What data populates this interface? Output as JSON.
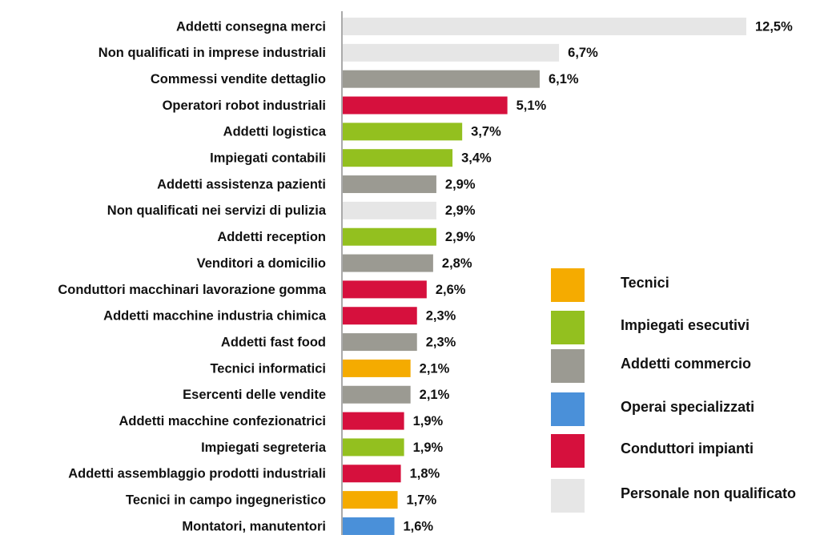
{
  "chart_data": {
    "type": "bar",
    "orientation": "horizontal",
    "categories": [
      "Addetti consegna merci",
      "Non qualificati in imprese industriali",
      "Commessi vendite dettaglio",
      "Operatori robot industriali",
      "Addetti logistica",
      "Impiegati contabili",
      "Addetti assistenza pazienti",
      "Non qualificati nei servizi di pulizia",
      "Addetti reception",
      "Venditori a domicilio",
      "Conduttori macchinari lavorazione gomma",
      "Addetti macchine industria chimica",
      "Addetti fast food",
      "Tecnici informatici",
      "Esercenti delle vendite",
      "Addetti macchine confezionatrici",
      "Impiegati segreteria",
      "Addetti assemblaggio prodotti industriali",
      "Tecnici in campo ingegneristico",
      "Montatori, manutentori"
    ],
    "values": [
      12.5,
      6.7,
      6.1,
      5.1,
      3.7,
      3.4,
      2.9,
      2.9,
      2.9,
      2.8,
      2.6,
      2.3,
      2.3,
      2.1,
      2.1,
      1.9,
      1.9,
      1.8,
      1.7,
      1.6
    ],
    "value_labels": [
      "12,5%",
      "6,7%",
      "6,1%",
      "5,1%",
      "3,7%",
      "3,4%",
      "2,9%",
      "2,9%",
      "2,9%",
      "2,8%",
      "2,6%",
      "2,3%",
      "2,3%",
      "2,1%",
      "2,1%",
      "1,9%",
      "1,9%",
      "1,8%",
      "1,7%",
      "1,6%"
    ],
    "colors": [
      "#e6e6e6",
      "#e6e6e6",
      "#9b9a92",
      "#d6103d",
      "#93c01f",
      "#93c01f",
      "#9b9a92",
      "#e6e6e6",
      "#93c01f",
      "#9b9a92",
      "#d6103d",
      "#d6103d",
      "#9b9a92",
      "#f5ab00",
      "#9b9a92",
      "#d6103d",
      "#93c01f",
      "#d6103d",
      "#f5ab00",
      "#4a90d9"
    ],
    "legend": [
      {
        "name": "Tecnici",
        "color": "#f5ab00"
      },
      {
        "name": "Impiegati esecutivi",
        "color": "#93c01f"
      },
      {
        "name": "Addetti commercio",
        "color": "#9b9a92"
      },
      {
        "name": "Operai specializzati",
        "color": "#4a90d9"
      },
      {
        "name": "Conduttori impianti",
        "color": "#d6103d"
      },
      {
        "name": "Personale non qualificato",
        "color": "#e6e6e6"
      }
    ]
  }
}
